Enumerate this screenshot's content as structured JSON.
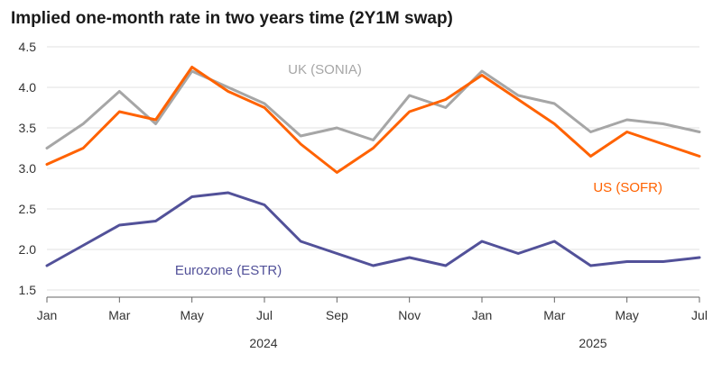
{
  "chart_data": {
    "type": "line",
    "title": "Implied one-month rate in two years time (2Y1M swap)",
    "xlabel": "",
    "ylabel": "",
    "ylim": [
      1.5,
      4.5
    ],
    "yticks": [
      "1.5",
      "2.0",
      "2.5",
      "3.0",
      "3.5",
      "4.0",
      "4.5"
    ],
    "xticks": [
      "Jan",
      "Mar",
      "May",
      "Jul",
      "Sep",
      "Nov",
      "Jan",
      "Mar",
      "May",
      "Jul"
    ],
    "years": [
      "2024",
      "2025"
    ],
    "grid": "horizontal",
    "x": [
      "2024-01",
      "2024-02",
      "2024-03",
      "2024-04",
      "2024-05",
      "2024-06",
      "2024-07",
      "2024-08",
      "2024-09",
      "2024-10",
      "2024-11",
      "2024-12",
      "2025-01",
      "2025-02",
      "2025-03",
      "2025-04",
      "2025-05",
      "2025-06",
      "2025-07"
    ],
    "series": [
      {
        "name": "UK (SONIA)",
        "color": "#a6a6a6",
        "values": [
          3.25,
          3.55,
          3.95,
          3.55,
          4.2,
          4.0,
          3.8,
          3.4,
          3.5,
          3.35,
          3.9,
          3.75,
          4.2,
          3.9,
          3.8,
          3.45,
          3.6,
          3.55,
          3.45
        ]
      },
      {
        "name": "US (SOFR)",
        "color": "#ff6200",
        "values": [
          3.05,
          3.25,
          3.7,
          3.6,
          4.25,
          3.95,
          3.75,
          3.3,
          2.95,
          3.25,
          3.7,
          3.85,
          4.15,
          3.85,
          3.55,
          3.15,
          3.45,
          3.3,
          3.15
        ]
      },
      {
        "name": "Eurozone (ESTR)",
        "color": "#525199",
        "values": [
          1.8,
          2.05,
          2.3,
          2.35,
          2.65,
          2.7,
          2.55,
          2.1,
          1.95,
          1.8,
          1.9,
          1.8,
          2.1,
          1.95,
          2.1,
          1.8,
          1.85,
          1.85,
          1.9
        ]
      }
    ]
  }
}
